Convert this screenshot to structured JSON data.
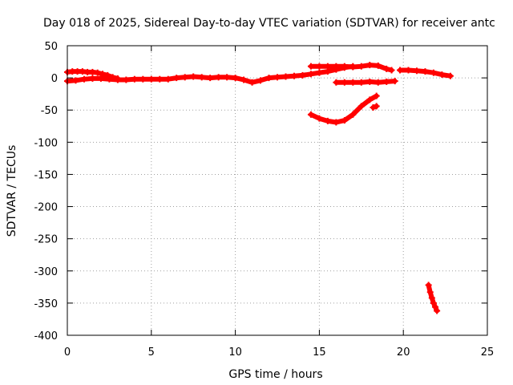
{
  "chart_data": {
    "type": "scatter",
    "title": "Day 018 of 2025, Sidereal Day-to-day VTEC variation (SDTVAR) for receiver antc",
    "xlabel": "GPS time / hours",
    "ylabel": "SDTVAR / TECUs",
    "xlim": [
      0,
      25
    ],
    "ylim": [
      -400,
      50
    ],
    "xticks": [
      0,
      5,
      10,
      15,
      20,
      25
    ],
    "xtick_labels": [
      "0",
      "5",
      "10",
      "15",
      "20",
      "25"
    ],
    "yticks": [
      50,
      0,
      -50,
      -100,
      -150,
      -200,
      -250,
      -300,
      -350,
      -400
    ],
    "ytick_labels": [
      "50",
      "0",
      "-50",
      "-100",
      "-150",
      "-200",
      "-250",
      "-300",
      "-350",
      "-400"
    ],
    "grid": true,
    "marker_color": "#ff0000",
    "marker": "plus",
    "series": [
      {
        "x": [
          0.0,
          0.3,
          0.6,
          0.9,
          1.2,
          1.5,
          1.8,
          2.1,
          2.4,
          2.7,
          3.0
        ],
        "y": [
          9,
          10,
          10,
          10,
          9,
          9,
          8,
          6,
          4,
          1,
          -1
        ]
      },
      {
        "x": [
          0.0,
          0.5,
          1.0,
          1.5,
          2.0,
          2.5,
          3.0,
          3.5,
          4.0,
          4.5,
          5.0,
          5.5,
          6.0,
          6.5,
          7.0,
          7.5,
          8.0,
          8.5,
          9.0,
          9.5,
          10.0,
          10.5,
          11.0,
          11.5,
          12.0,
          12.5,
          13.0,
          13.5,
          14.0,
          14.5,
          15.0,
          15.5,
          16.0,
          16.5,
          17.0
        ],
        "y": [
          -5,
          -4,
          -2,
          -1,
          -1,
          -2,
          -3,
          -3,
          -2,
          -2,
          -2,
          -2,
          -2,
          0,
          1,
          2,
          1,
          0,
          1,
          1,
          0,
          -3,
          -7,
          -4,
          0,
          1,
          2,
          3,
          4,
          6,
          8,
          10,
          13,
          16,
          18
        ]
      },
      {
        "x": [
          14.5,
          15.0,
          15.5,
          16.0,
          16.5,
          17.0,
          17.5,
          18.0,
          18.5,
          19.0,
          19.3
        ],
        "y": [
          18,
          18,
          18,
          18,
          18,
          17,
          18,
          20,
          19,
          14,
          12
        ]
      },
      {
        "x": [
          16.0,
          16.5,
          17.0,
          17.5,
          18.0,
          18.5,
          19.0,
          19.5
        ],
        "y": [
          -7,
          -7,
          -7,
          -7,
          -6,
          -7,
          -6,
          -5
        ]
      },
      {
        "x": [
          14.5,
          15.0,
          15.5,
          16.0,
          16.5,
          17.0,
          17.5,
          18.0,
          18.4
        ],
        "y": [
          -57,
          -63,
          -67,
          -69,
          -66,
          -57,
          -44,
          -34,
          -28
        ]
      },
      {
        "x": [
          18.2,
          18.4
        ],
        "y": [
          -46,
          -44
        ]
      },
      {
        "x": [
          19.8,
          20.3,
          20.8,
          21.3,
          21.8,
          22.3,
          22.8
        ],
        "y": [
          12,
          12,
          11,
          10,
          8,
          5,
          3
        ]
      },
      {
        "x": [
          21.5,
          21.6,
          21.7,
          21.8,
          21.9,
          22.0
        ],
        "y": [
          -322,
          -333,
          -342,
          -350,
          -356,
          -362
        ]
      }
    ]
  }
}
